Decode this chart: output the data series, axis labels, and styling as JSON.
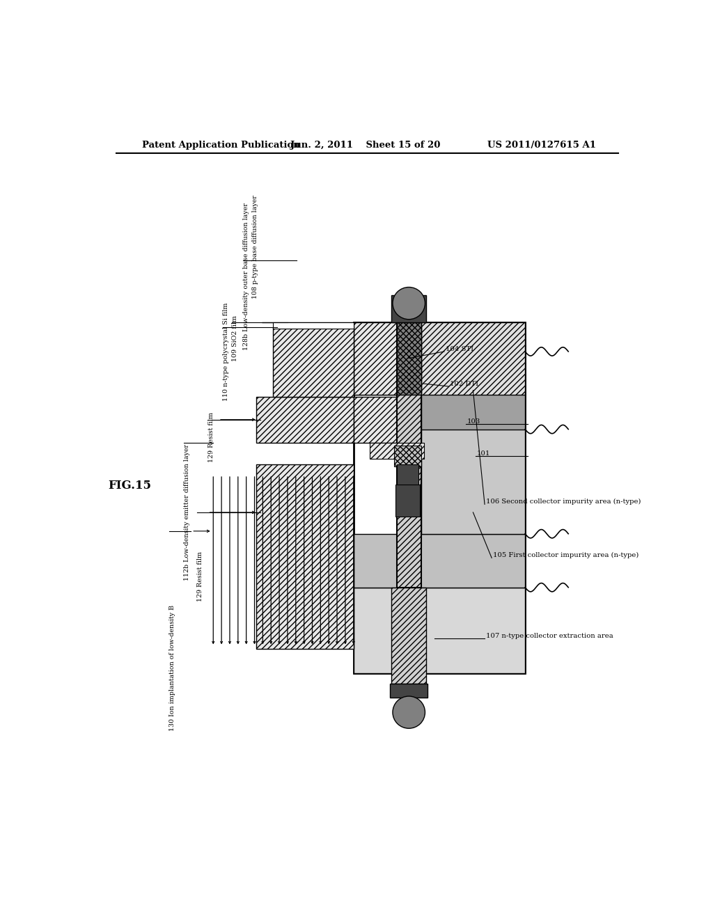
{
  "bg_color": "#ffffff",
  "header_left": "Patent Application Publication",
  "header_center": "Jun. 2, 2011    Sheet 15 of 20",
  "header_right": "US 2011/0127615 A1",
  "fig_label": "FIG.15",
  "gray_light": "#d8d8d8",
  "gray_med": "#b8b8b8",
  "gray_dark": "#888888",
  "gray_vdark": "#444444",
  "gray_dot": "#808080"
}
